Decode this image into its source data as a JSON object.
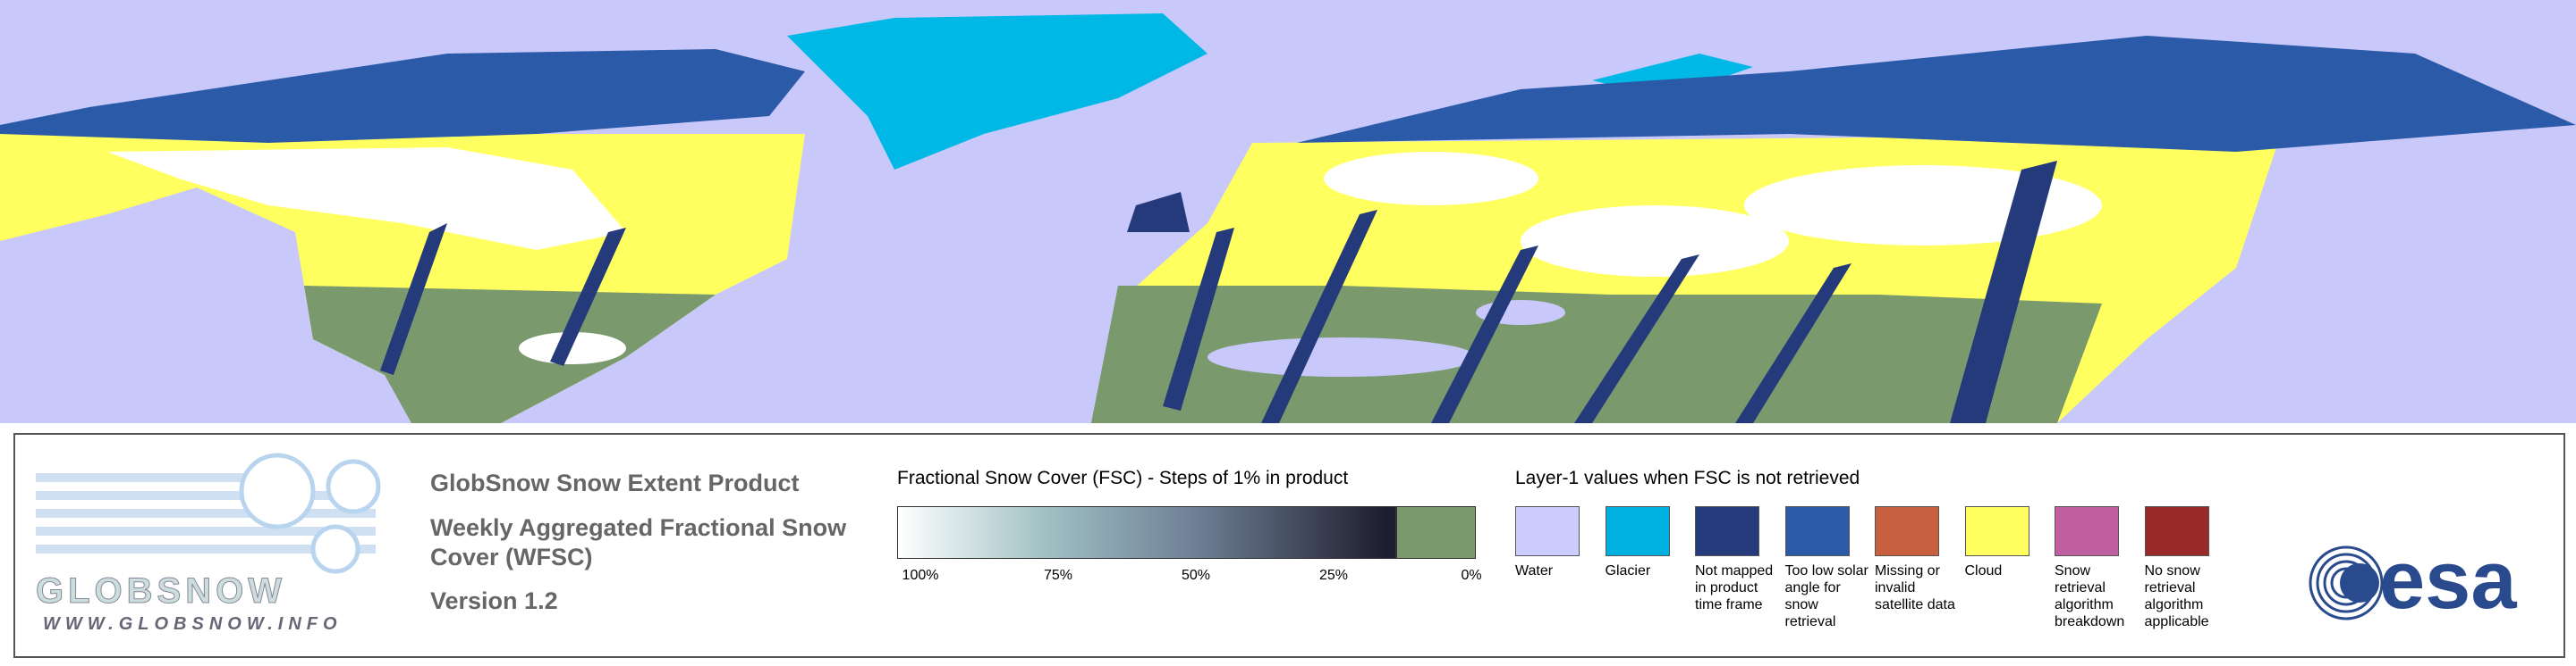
{
  "logo": {
    "name": "GLOBSNOW",
    "url": "WWW.GLOBSNOW.INFO"
  },
  "product": {
    "title": "GlobSnow Snow Extent Product",
    "subtitle": "Weekly Aggregated Fractional Snow Cover (WFSC)",
    "version": "Version 1.2"
  },
  "fsc_scale": {
    "title": "Fractional Snow Cover (FSC) - Steps of 1% in product",
    "ticks": [
      {
        "value": 100,
        "label": "100%"
      },
      {
        "value": 75,
        "label": "75%"
      },
      {
        "value": 50,
        "label": "50%"
      },
      {
        "value": 25,
        "label": "25%"
      },
      {
        "value": 0,
        "label": "0%"
      }
    ]
  },
  "layer1": {
    "title": "Layer-1 values when FSC is not retrieved",
    "items": [
      {
        "label": "Water",
        "color": "#ccccff"
      },
      {
        "label": "Glacier",
        "color": "#00b0e0"
      },
      {
        "label": "Not mapped in product time frame",
        "color": "#243a7a"
      },
      {
        "label": "Too low solar angle for snow retrieval",
        "color": "#2a5aa8"
      },
      {
        "label": "Missing or invalid satellite data",
        "color": "#c86040"
      },
      {
        "label": "Cloud",
        "color": "#ffff60"
      },
      {
        "label": "Snow retrieval algorithm breakdown",
        "color": "#c060a0"
      },
      {
        "label": "No snow retrieval algorithm applicable",
        "color": "#9a2a2a"
      }
    ]
  },
  "agency": {
    "name": "esa"
  }
}
